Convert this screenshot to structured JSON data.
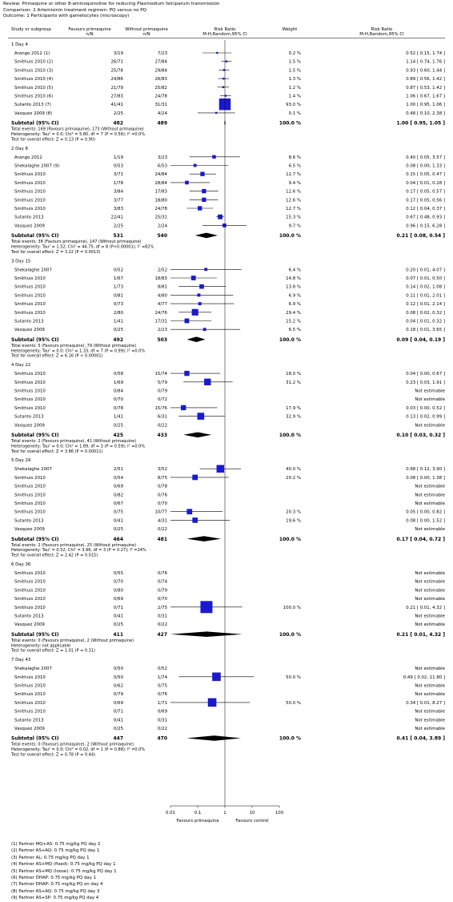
{
  "header": {
    "review": "Review: Primaquine or other 8-aminoquinoline for reducing Plasmodium falciparum transmission",
    "comparison": "Comparison: 2 Artemisinin treatment regimen: PQ versus no PQ",
    "outcome": "Outcome: 1 Participants with gametocytes (microscopy)"
  },
  "columns": {
    "study": "Study or subgroup",
    "exp": "Favours primaquine",
    "exp_sub": "n/N",
    "ctrl": "Without primaquine",
    "ctrl_sub": "n/N",
    "rr": "Risk Ratio",
    "rr_sub": "M-H,Random,95% CI",
    "weight": "Weight",
    "rr2": "Risk Ratio",
    "rr2_sub": "M-H,Random,95% CI"
  },
  "axis": {
    "ticks": [
      "0.01",
      "0.1",
      "1",
      "10",
      "100"
    ],
    "left_label": "Favours primaquine",
    "right_label": "Favours control"
  },
  "footnotes": [
    "(1) Partner MQ+AS: 0.75 mg/kg PQ day 2",
    "(2) Partner AS+AQ: 0.75 mg/kg PQ day 1",
    "(3) Partner AL: 0.75 mg/kg PQ day 1",
    "(4) Partner AS+MQ (fixed): 0.75 mg/kg PQ day 1",
    "(5) Partner AS+MQ (loose): 0.75 mg/kg PQ day 1",
    "(6) Partner DHAP: 0.75 mg/kg PQ day 1",
    "(7) Partner DHAP: 0.75 mg/kg PQ on day 4",
    "(8) Partner AS+AQ: 0.75 mg/kg PQ day 3",
    "(9) Partner AS+SP: 0.75 mg/kg PQ day 4"
  ],
  "chart_data": {
    "type": "forest",
    "xscale": "log",
    "xlim": [
      0.01,
      100
    ],
    "groups": [
      {
        "title": "1 Day 4",
        "studies": [
          {
            "name": "Arango 2012 (1)",
            "exp": "3/19",
            "ctrl": "7/23",
            "weight": "0.2 %",
            "ci": "0.52 [ 0.15, 1.74 ]",
            "rr": 0.52,
            "lo": 0.15,
            "hi": 1.74,
            "w": 0.2
          },
          {
            "name": "Smithuis 2010 (2)",
            "exp": "26/71",
            "ctrl": "27/84",
            "weight": "1.5 %",
            "ci": "1.14 [ 0.74, 1.76 ]",
            "rr": 1.14,
            "lo": 0.74,
            "hi": 1.76,
            "w": 1.5
          },
          {
            "name": "Smithuis 2010 (3)",
            "exp": "25/78",
            "ctrl": "29/84",
            "weight": "1.5 %",
            "ci": "0.93 [ 0.60, 1.44 ]",
            "rr": 0.93,
            "lo": 0.6,
            "hi": 1.44,
            "w": 1.5
          },
          {
            "name": "Smithuis 2010 (4)",
            "exp": "24/86",
            "ctrl": "26/83",
            "weight": "1.3 %",
            "ci": "0.89 [ 0.56, 1.42 ]",
            "rr": 0.89,
            "lo": 0.56,
            "hi": 1.42,
            "w": 1.3
          },
          {
            "name": "Smithuis 2010 (5)",
            "exp": "21/79",
            "ctrl": "25/82",
            "weight": "1.2 %",
            "ci": "0.87 [ 0.53, 1.42 ]",
            "rr": 0.87,
            "lo": 0.53,
            "hi": 1.42,
            "w": 1.2
          },
          {
            "name": "Smithuis 2010 (6)",
            "exp": "27/83",
            "ctrl": "24/78",
            "weight": "1.4 %",
            "ci": "1.06 [ 0.67, 1.67 ]",
            "rr": 1.06,
            "lo": 0.67,
            "hi": 1.67,
            "w": 1.4
          },
          {
            "name": "Sutanto 2013 (7)",
            "exp": "41/41",
            "ctrl": "31/31",
            "weight": "93.0 %",
            "ci": "1.00 [ 0.95, 1.06 ]",
            "rr": 1.0,
            "lo": 0.95,
            "hi": 1.06,
            "w": 93.0
          },
          {
            "name": "Vasquez 2009 (8)",
            "exp": "2/25",
            "ctrl": "4/24",
            "weight": "0.1 %",
            "ci": "0.48 [ 0.10, 2.38 ]",
            "rr": 0.48,
            "lo": 0.1,
            "hi": 2.38,
            "w": 0.1
          }
        ],
        "subtotal": {
          "exp": "482",
          "ctrl": "489",
          "weight": "100.0 %",
          "ci": "1.00 [ 0.95, 1.05 ]",
          "rr": 1.0,
          "lo": 0.95,
          "hi": 1.05
        },
        "notes": [
          "Total events: 169 (Favours primaquine), 173 (Without primaquine)",
          "Heterogeneity: Tau² = 0.0; Chi² = 5.80, df = 7 (P = 0.56); I² =0.0%",
          "Test for overall effect: Z = 0.13 (P = 0.90)"
        ]
      },
      {
        "title": "2 Day 8",
        "studies": [
          {
            "name": "Arango 2012",
            "exp": "1/19",
            "ctrl": "3/23",
            "weight": "8.6 %",
            "ci": "0.40 [ 0.05, 3.57 ]",
            "rr": 0.4,
            "lo": 0.05,
            "hi": 3.57,
            "w": 8.6
          },
          {
            "name": "Shekalaghe 2007 (9)",
            "exp": "0/53",
            "ctrl": "6/53",
            "weight": "6.5 %",
            "ci": "0.08 [ 0.00, 1.33 ]",
            "rr": 0.08,
            "lo": 0.0048,
            "hi": 1.33,
            "w": 6.5
          },
          {
            "name": "Smithuis 2010",
            "exp": "3/71",
            "ctrl": "24/84",
            "weight": "12.7 %",
            "ci": "0.15 [ 0.05, 0.47 ]",
            "rr": 0.15,
            "lo": 0.05,
            "hi": 0.47,
            "w": 12.7
          },
          {
            "name": "Smithuis 2010",
            "exp": "1/78",
            "ctrl": "28/84",
            "weight": "9.4 %",
            "ci": "0.04 [ 0.01, 0.28 ]",
            "rr": 0.04,
            "lo": 0.01,
            "hi": 0.28,
            "w": 9.4
          },
          {
            "name": "Smithuis 2010",
            "exp": "3/84",
            "ctrl": "17/83",
            "weight": "12.6 %",
            "ci": "0.17 [ 0.05, 0.57 ]",
            "rr": 0.17,
            "lo": 0.05,
            "hi": 0.57,
            "w": 12.6
          },
          {
            "name": "Smithuis 2010",
            "exp": "3/77",
            "ctrl": "18/80",
            "weight": "12.6 %",
            "ci": "0.17 [ 0.05, 0.56 ]",
            "rr": 0.17,
            "lo": 0.05,
            "hi": 0.56,
            "w": 12.6
          },
          {
            "name": "Smithuis 2010",
            "exp": "3/83",
            "ctrl": "24/78",
            "weight": "12.7 %",
            "ci": "0.12 [ 0.04, 0.37 ]",
            "rr": 0.12,
            "lo": 0.04,
            "hi": 0.37,
            "w": 12.7
          },
          {
            "name": "Sutanto 2013",
            "exp": "22/41",
            "ctrl": "25/31",
            "weight": "15.3 %",
            "ci": "0.67 [ 0.48, 0.93 ]",
            "rr": 0.67,
            "lo": 0.48,
            "hi": 0.93,
            "w": 15.3
          },
          {
            "name": "Vasquez 2009",
            "exp": "2/25",
            "ctrl": "2/24",
            "weight": "9.7 %",
            "ci": "0.96 [ 0.15, 6.28 ]",
            "rr": 0.96,
            "lo": 0.15,
            "hi": 6.28,
            "w": 9.7
          }
        ],
        "subtotal": {
          "exp": "531",
          "ctrl": "540",
          "weight": "100.0 %",
          "ci": "0.21 [ 0.08, 0.54 ]",
          "rr": 0.21,
          "lo": 0.08,
          "hi": 0.54
        },
        "notes": [
          "Total events: 38 (Favours primaquine), 147 (Without primaquine)",
          "Heterogeneity: Tau² = 1.52; Chi² = 44.75, df = 8 (P<0.00001); I² =82%",
          "Test for overall effect: Z = 3.22 (P = 0.0013)"
        ]
      },
      {
        "title": "3 Day 15",
        "studies": [
          {
            "name": "Shekalaghe 2007",
            "exp": "0/52",
            "ctrl": "2/52",
            "weight": "6.4 %",
            "ci": "0.20 [ 0.01, 4.07 ]",
            "rr": 0.2,
            "lo": 0.01,
            "hi": 4.07,
            "w": 6.4
          },
          {
            "name": "Smithuis 2010",
            "exp": "1/67",
            "ctrl": "18/83",
            "weight": "14.8 %",
            "ci": "0.07 [ 0.01, 0.50 ]",
            "rr": 0.07,
            "lo": 0.01,
            "hi": 0.5,
            "w": 14.8
          },
          {
            "name": "Smithuis 2010",
            "exp": "1/73",
            "ctrl": "8/81",
            "weight": "13.8 %",
            "ci": "0.14 [ 0.02, 1.08 ]",
            "rr": 0.14,
            "lo": 0.02,
            "hi": 1.08,
            "w": 13.8
          },
          {
            "name": "Smithuis 2010",
            "exp": "0/81",
            "ctrl": "4/80",
            "weight": "6.9 %",
            "ci": "0.11 [ 0.01, 2.01 ]",
            "rr": 0.11,
            "lo": 0.006,
            "hi": 2.01,
            "w": 6.9
          },
          {
            "name": "Smithuis 2010",
            "exp": "0/73",
            "ctrl": "4/77",
            "weight": "6.9 %",
            "ci": "0.12 [ 0.01, 2.14 ]",
            "rr": 0.12,
            "lo": 0.006,
            "hi": 2.14,
            "w": 6.9
          },
          {
            "name": "Smithuis 2010",
            "exp": "2/80",
            "ctrl": "24/76",
            "weight": "29.4 %",
            "ci": "0.08 [ 0.02, 0.32 ]",
            "rr": 0.08,
            "lo": 0.02,
            "hi": 0.32,
            "w": 29.4
          },
          {
            "name": "Sutanto 2013",
            "exp": "1/41",
            "ctrl": "17/31",
            "weight": "15.2 %",
            "ci": "0.04 [ 0.01, 0.32 ]",
            "rr": 0.04,
            "lo": 0.01,
            "hi": 0.32,
            "w": 15.2
          },
          {
            "name": "Vasquez 2009",
            "exp": "0/25",
            "ctrl": "2/23",
            "weight": "6.5 %",
            "ci": "0.18 [ 0.01, 3.65 ]",
            "rr": 0.18,
            "lo": 0.01,
            "hi": 3.65,
            "w": 6.5
          }
        ],
        "subtotal": {
          "exp": "492",
          "ctrl": "503",
          "weight": "100.0 %",
          "ci": "0.09 [ 0.04, 0.19 ]",
          "rr": 0.09,
          "lo": 0.04,
          "hi": 0.19
        },
        "notes": [
          "Total events: 5 (Favours primaquine), 79 (Without primaquine)",
          "Heterogeneity: Tau² = 0.0; Chi² = 1.33, df = 7 (P = 0.99); I² =0.0%",
          "Test for overall effect: Z = 6.16 (P < 0.00001)"
        ]
      },
      {
        "title": "4 Day 22",
        "studies": [
          {
            "name": "Smithuis 2010",
            "exp": "0/58",
            "ctrl": "15/74",
            "weight": "18.0 %",
            "ci": "0.04 [ 0.00, 0.67 ]",
            "rr": 0.04,
            "lo": 0.0024,
            "hi": 0.67,
            "w": 18.0
          },
          {
            "name": "Smithuis 2010",
            "exp": "1/69",
            "ctrl": "5/79",
            "weight": "31.2 %",
            "ci": "0.23 [ 0.03, 1.91 ]",
            "rr": 0.23,
            "lo": 0.03,
            "hi": 1.91,
            "w": 31.2
          },
          {
            "name": "Smithuis 2010",
            "exp": "0/84",
            "ctrl": "0/79",
            "weight": "",
            "ci": "Not estimable"
          },
          {
            "name": "Smithuis 2010",
            "exp": "0/70",
            "ctrl": "0/72",
            "weight": "",
            "ci": "Not estimable"
          },
          {
            "name": "Smithuis 2010",
            "exp": "0/78",
            "ctrl": "15/76",
            "weight": "17.9 %",
            "ci": "0.03 [ 0.00, 0.52 ]",
            "rr": 0.03,
            "lo": 0.0018,
            "hi": 0.52,
            "w": 17.9
          },
          {
            "name": "Sutanto 2013",
            "exp": "1/41",
            "ctrl": "6/31",
            "weight": "32.9 %",
            "ci": "0.13 [ 0.02, 0.99 ]",
            "rr": 0.13,
            "lo": 0.02,
            "hi": 0.99,
            "w": 32.9
          },
          {
            "name": "Vasquez 2009",
            "exp": "0/25",
            "ctrl": "0/22",
            "weight": "",
            "ci": "Not estimable"
          }
        ],
        "subtotal": {
          "exp": "425",
          "ctrl": "433",
          "weight": "100.0 %",
          "ci": "0.10 [ 0.03, 0.32 ]",
          "rr": 0.1,
          "lo": 0.03,
          "hi": 0.32
        },
        "notes": [
          "Total events: 2 (Favours primaquine), 41 (Without primaquine)",
          "Heterogeneity: Tau² = 0.0; Chi² = 1.89, df = 3 (P = 0.59); I² =0.0%",
          "Test for overall effect: Z = 3.86 (P = 0.00011)"
        ]
      },
      {
        "title": "5 Day 29",
        "studies": [
          {
            "name": "Shekalaghe 2007",
            "exp": "2/51",
            "ctrl": "3/52",
            "weight": "40.0 %",
            "ci": "0.68 [ 0.12, 3.90 ]",
            "rr": 0.68,
            "lo": 0.12,
            "hi": 3.9,
            "w": 40.0
          },
          {
            "name": "Smithuis 2010",
            "exp": "0/54",
            "ctrl": "8/75",
            "weight": "20.2 %",
            "ci": "0.08 [ 0.00, 1.38 ]",
            "rr": 0.08,
            "lo": 0.0048,
            "hi": 1.38,
            "w": 20.2
          },
          {
            "name": "Smithuis 2010",
            "exp": "0/69",
            "ctrl": "0/78",
            "weight": "",
            "ci": "Not estimable"
          },
          {
            "name": "Smithuis 2010",
            "exp": "0/82",
            "ctrl": "0/76",
            "weight": "",
            "ci": "Not estimable"
          },
          {
            "name": "Smithuis 2010",
            "exp": "0/67",
            "ctrl": "0/70",
            "weight": "",
            "ci": "Not estimable"
          },
          {
            "name": "Smithuis 2010",
            "exp": "0/75",
            "ctrl": "10/77",
            "weight": "20.3 %",
            "ci": "0.05 [ 0.00, 0.82 ]",
            "rr": 0.05,
            "lo": 0.003,
            "hi": 0.82,
            "w": 20.3
          },
          {
            "name": "Sutanto 2013",
            "exp": "0/41",
            "ctrl": "4/31",
            "weight": "19.6 %",
            "ci": "0.08 [ 0.00, 1.52 ]",
            "rr": 0.08,
            "lo": 0.0048,
            "hi": 1.52,
            "w": 19.6
          },
          {
            "name": "Vasquez 2009",
            "exp": "0/25",
            "ctrl": "0/22",
            "weight": "",
            "ci": "Not estimable"
          }
        ],
        "subtotal": {
          "exp": "464",
          "ctrl": "481",
          "weight": "100.0 %",
          "ci": "0.17 [ 0.04, 0.72 ]",
          "rr": 0.17,
          "lo": 0.04,
          "hi": 0.72
        },
        "notes": [
          "Total events: 2 (Favours primaquine), 25 (Without primaquine)",
          "Heterogeneity: Tau² = 0.52; Chi² = 3.96, df = 3 (P = 0.27); I² =24%",
          "Test for overall effect: Z = 2.42 (P = 0.015)"
        ]
      },
      {
        "title": "6 Day 36",
        "studies": [
          {
            "name": "Smithuis 2010",
            "exp": "0/55",
            "ctrl": "0/76",
            "weight": "",
            "ci": "Not estimable"
          },
          {
            "name": "Smithuis 2010",
            "exp": "0/70",
            "ctrl": "0/74",
            "weight": "",
            "ci": "Not estimable"
          },
          {
            "name": "Smithuis 2010",
            "exp": "0/80",
            "ctrl": "0/79",
            "weight": "",
            "ci": "Not estimable"
          },
          {
            "name": "Smithuis 2010",
            "exp": "0/69",
            "ctrl": "0/70",
            "weight": "",
            "ci": "Not estimable"
          },
          {
            "name": "Smithuis 2010",
            "exp": "0/71",
            "ctrl": "2/75",
            "weight": "100.0 %",
            "ci": "0.21 [ 0.01, 4.32 ]",
            "rr": 0.21,
            "lo": 0.01,
            "hi": 4.32,
            "w": 100.0
          },
          {
            "name": "Sutanto 2013",
            "exp": "0/41",
            "ctrl": "0/31",
            "weight": "",
            "ci": "Not estimable"
          },
          {
            "name": "Vasquez 2009",
            "exp": "0/25",
            "ctrl": "0/22",
            "weight": "",
            "ci": "Not estimable"
          }
        ],
        "subtotal": {
          "exp": "411",
          "ctrl": "427",
          "weight": "100.0 %",
          "ci": "0.21 [ 0.01, 4.32 ]",
          "rr": 0.21,
          "lo": 0.01,
          "hi": 4.32
        },
        "notes": [
          "Total events: 0 (Favours primaquine), 2 (Without primaquine)",
          "Heterogeneity: not applicable",
          "Test for overall effect: Z = 1.01 (P = 0.31)"
        ]
      },
      {
        "title": "7 Day 43",
        "studies": [
          {
            "name": "Shekalaghe 2007",
            "exp": "0/50",
            "ctrl": "0/52",
            "weight": "",
            "ci": "Not estimable"
          },
          {
            "name": "Smithuis 2010",
            "exp": "0/50",
            "ctrl": "1/74",
            "weight": "50.0 %",
            "ci": "0.49 [ 0.02, 11.80 ]",
            "rr": 0.49,
            "lo": 0.02,
            "hi": 11.8,
            "w": 50.0
          },
          {
            "name": "Smithuis 2010",
            "exp": "0/62",
            "ctrl": "0/75",
            "weight": "",
            "ci": "Not estimable"
          },
          {
            "name": "Smithuis 2010",
            "exp": "0/79",
            "ctrl": "0/76",
            "weight": "",
            "ci": "Not estimable"
          },
          {
            "name": "Smithuis 2010",
            "exp": "0/69",
            "ctrl": "1/71",
            "weight": "50.0 %",
            "ci": "0.34 [ 0.01, 8.27 ]",
            "rr": 0.34,
            "lo": 0.01,
            "hi": 8.27,
            "w": 50.0
          },
          {
            "name": "Smithuis 2010",
            "exp": "0/71",
            "ctrl": "0/69",
            "weight": "",
            "ci": "Not estimable"
          },
          {
            "name": "Sutanto 2013",
            "exp": "0/41",
            "ctrl": "0/31",
            "weight": "",
            "ci": "Not estimable"
          },
          {
            "name": "Vasquez 2009",
            "exp": "0/25",
            "ctrl": "0/22",
            "weight": "",
            "ci": "Not estimable"
          }
        ],
        "subtotal": {
          "exp": "447",
          "ctrl": "470",
          "weight": "100.0 %",
          "ci": "0.41 [ 0.04, 3.89 ]",
          "rr": 0.41,
          "lo": 0.04,
          "hi": 3.89
        },
        "notes": [
          "Total events: 0 (Favours primaquine), 2 (Without primaquine)",
          "Heterogeneity: Tau² = 0.0; Chi² = 0.02, df = 1 (P = 0.88); I² =0.0%",
          "Test for overall effect: Z = 0.78 (P = 0.44)"
        ]
      }
    ]
  }
}
